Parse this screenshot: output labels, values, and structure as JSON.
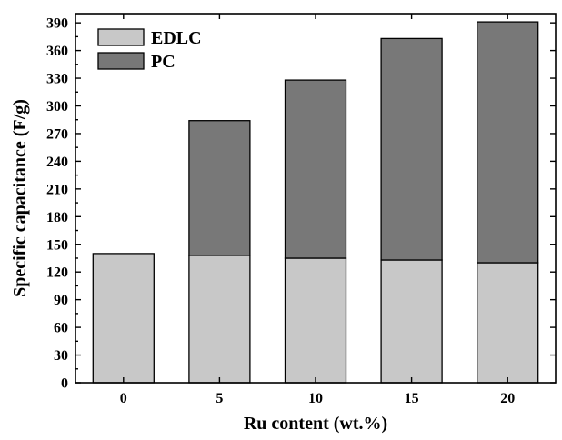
{
  "chart_data": {
    "type": "bar",
    "stacked": true,
    "categories": [
      "0",
      "5",
      "10",
      "15",
      "20"
    ],
    "series": [
      {
        "name": "EDLC",
        "color": "#c8c8c8",
        "values": [
          140,
          138,
          135,
          133,
          130
        ]
      },
      {
        "name": "PC",
        "color": "#787878",
        "values": [
          0,
          146,
          193,
          240,
          261
        ]
      }
    ],
    "xlabel": "Ru content (wt.%)",
    "ylabel": "Specific capacitance (F/g)",
    "ylim": [
      0,
      400
    ],
    "yticks": [
      0,
      30,
      60,
      90,
      120,
      150,
      180,
      210,
      240,
      270,
      300,
      330,
      360,
      390
    ],
    "grid": false,
    "legend_position": "top-left"
  }
}
